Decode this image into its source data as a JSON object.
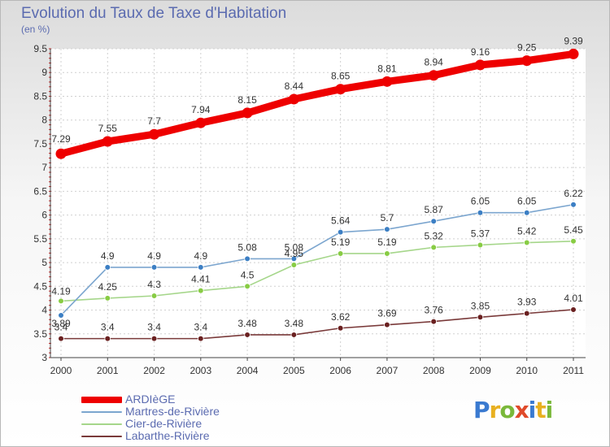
{
  "title": "Evolution du Taux de Taxe d'Habitation",
  "unit": "(en %)",
  "logo_text": "Proxiti",
  "chart_data": {
    "type": "line",
    "title": "Evolution du Taux de Taxe d'Habitation",
    "ylabel": "(en %)",
    "x": [
      "2000",
      "2001",
      "2002",
      "2003",
      "2004",
      "2005",
      "2006",
      "2007",
      "2008",
      "2009",
      "2010",
      "2011"
    ],
    "ylim": [
      3,
      9.5
    ],
    "yticks": [
      "3",
      "3.5",
      "4",
      "4.5",
      "5",
      "5.5",
      "6",
      "6.5",
      "7",
      "7.5",
      "8",
      "8.5",
      "9",
      "9.5"
    ],
    "grid": true,
    "legend": "bottom-left",
    "series": [
      {
        "name": "ARDIèGE",
        "color": "#ee0000",
        "values": [
          7.29,
          7.55,
          7.7,
          7.94,
          8.15,
          8.44,
          8.65,
          8.81,
          8.94,
          9.16,
          9.25,
          9.39
        ],
        "labels": [
          "7.29",
          "7.55",
          "7.7",
          "7.94",
          "8.15",
          "8.44",
          "8.65",
          "8.81",
          "8.94",
          "9.16",
          "9.25",
          "9.39"
        ]
      },
      {
        "name": "Martres-de-Rivière",
        "color": "#7ca6cf",
        "marker": "#3c7fc4",
        "values": [
          3.89,
          4.9,
          4.9,
          4.9,
          5.08,
          5.08,
          5.64,
          5.7,
          5.87,
          6.05,
          6.05,
          6.22
        ],
        "labels": [
          "3.89",
          "4.9",
          "4.9",
          "4.9",
          "5.08",
          "5.08",
          "5.64",
          "5.7",
          "5.87",
          "6.05",
          "6.05",
          "6.22"
        ]
      },
      {
        "name": "Cier-de-Rivière",
        "color": "#a5d68a",
        "marker": "#88cc44",
        "values": [
          4.19,
          4.25,
          4.3,
          4.41,
          4.5,
          4.95,
          5.19,
          5.19,
          5.32,
          5.37,
          5.42,
          5.45
        ],
        "labels": [
          "4.19",
          "4.25",
          "4.3",
          "4.41",
          "4.5",
          "4.95",
          "5.19",
          "5.19",
          "5.32",
          "5.37",
          "5.42",
          "5.45"
        ]
      },
      {
        "name": "Labarthe-Rivière",
        "color": "#7a3a3a",
        "marker": "#6a2020",
        "values": [
          3.4,
          3.4,
          3.4,
          3.4,
          3.48,
          3.48,
          3.62,
          3.69,
          3.76,
          3.85,
          3.93,
          4.01
        ],
        "labels": [
          "3.4",
          "3.4",
          "3.4",
          "3.4",
          "3.48",
          "3.48",
          "3.62",
          "3.69",
          "3.76",
          "3.85",
          "3.93",
          "4.01"
        ]
      }
    ]
  }
}
